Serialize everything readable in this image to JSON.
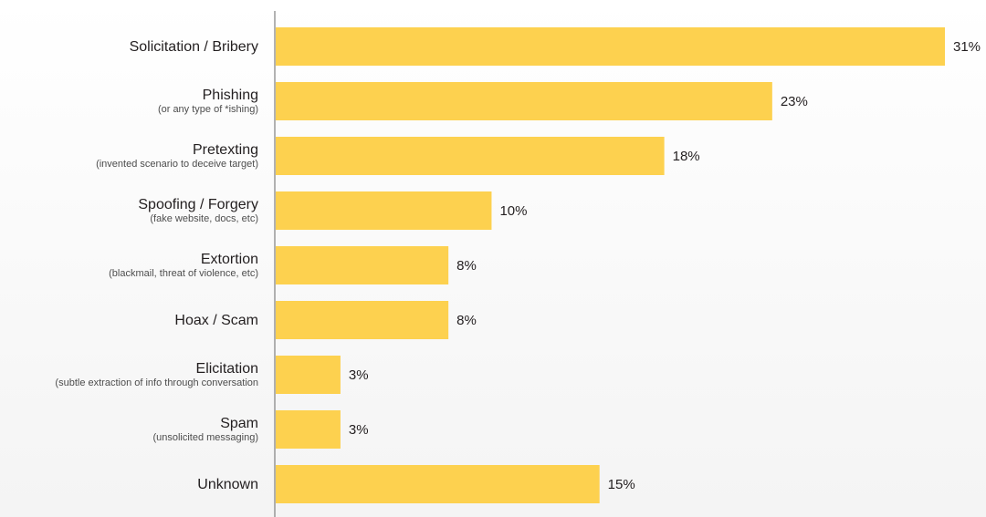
{
  "chart_data": {
    "type": "bar",
    "orientation": "horizontal",
    "categories": [
      "Solicitation / Bribery",
      "Phishing",
      "Pretexting",
      "Spoofing / Forgery",
      "Extortion",
      "Hoax / Scam",
      "Elicitation",
      "Spam",
      "Unknown"
    ],
    "subtitles": [
      "",
      "(or any type of *ishing)",
      "(invented scenario to deceive target)",
      "(fake website, docs, etc)",
      "(blackmail, threat of violence, etc)",
      "",
      "(subtle extraction of info through conversation",
      "(unsolicited messaging)",
      ""
    ],
    "values": [
      31,
      23,
      18,
      10,
      8,
      8,
      3,
      3,
      15
    ],
    "value_labels": [
      "31%",
      "23%",
      "18%",
      "10%",
      "8%",
      "8%",
      "3%",
      "3%",
      "15%"
    ],
    "xlim": [
      0,
      31
    ],
    "grid": false,
    "legend": "none",
    "bar_color": "#fdd14f",
    "axis_color": "#808080"
  }
}
